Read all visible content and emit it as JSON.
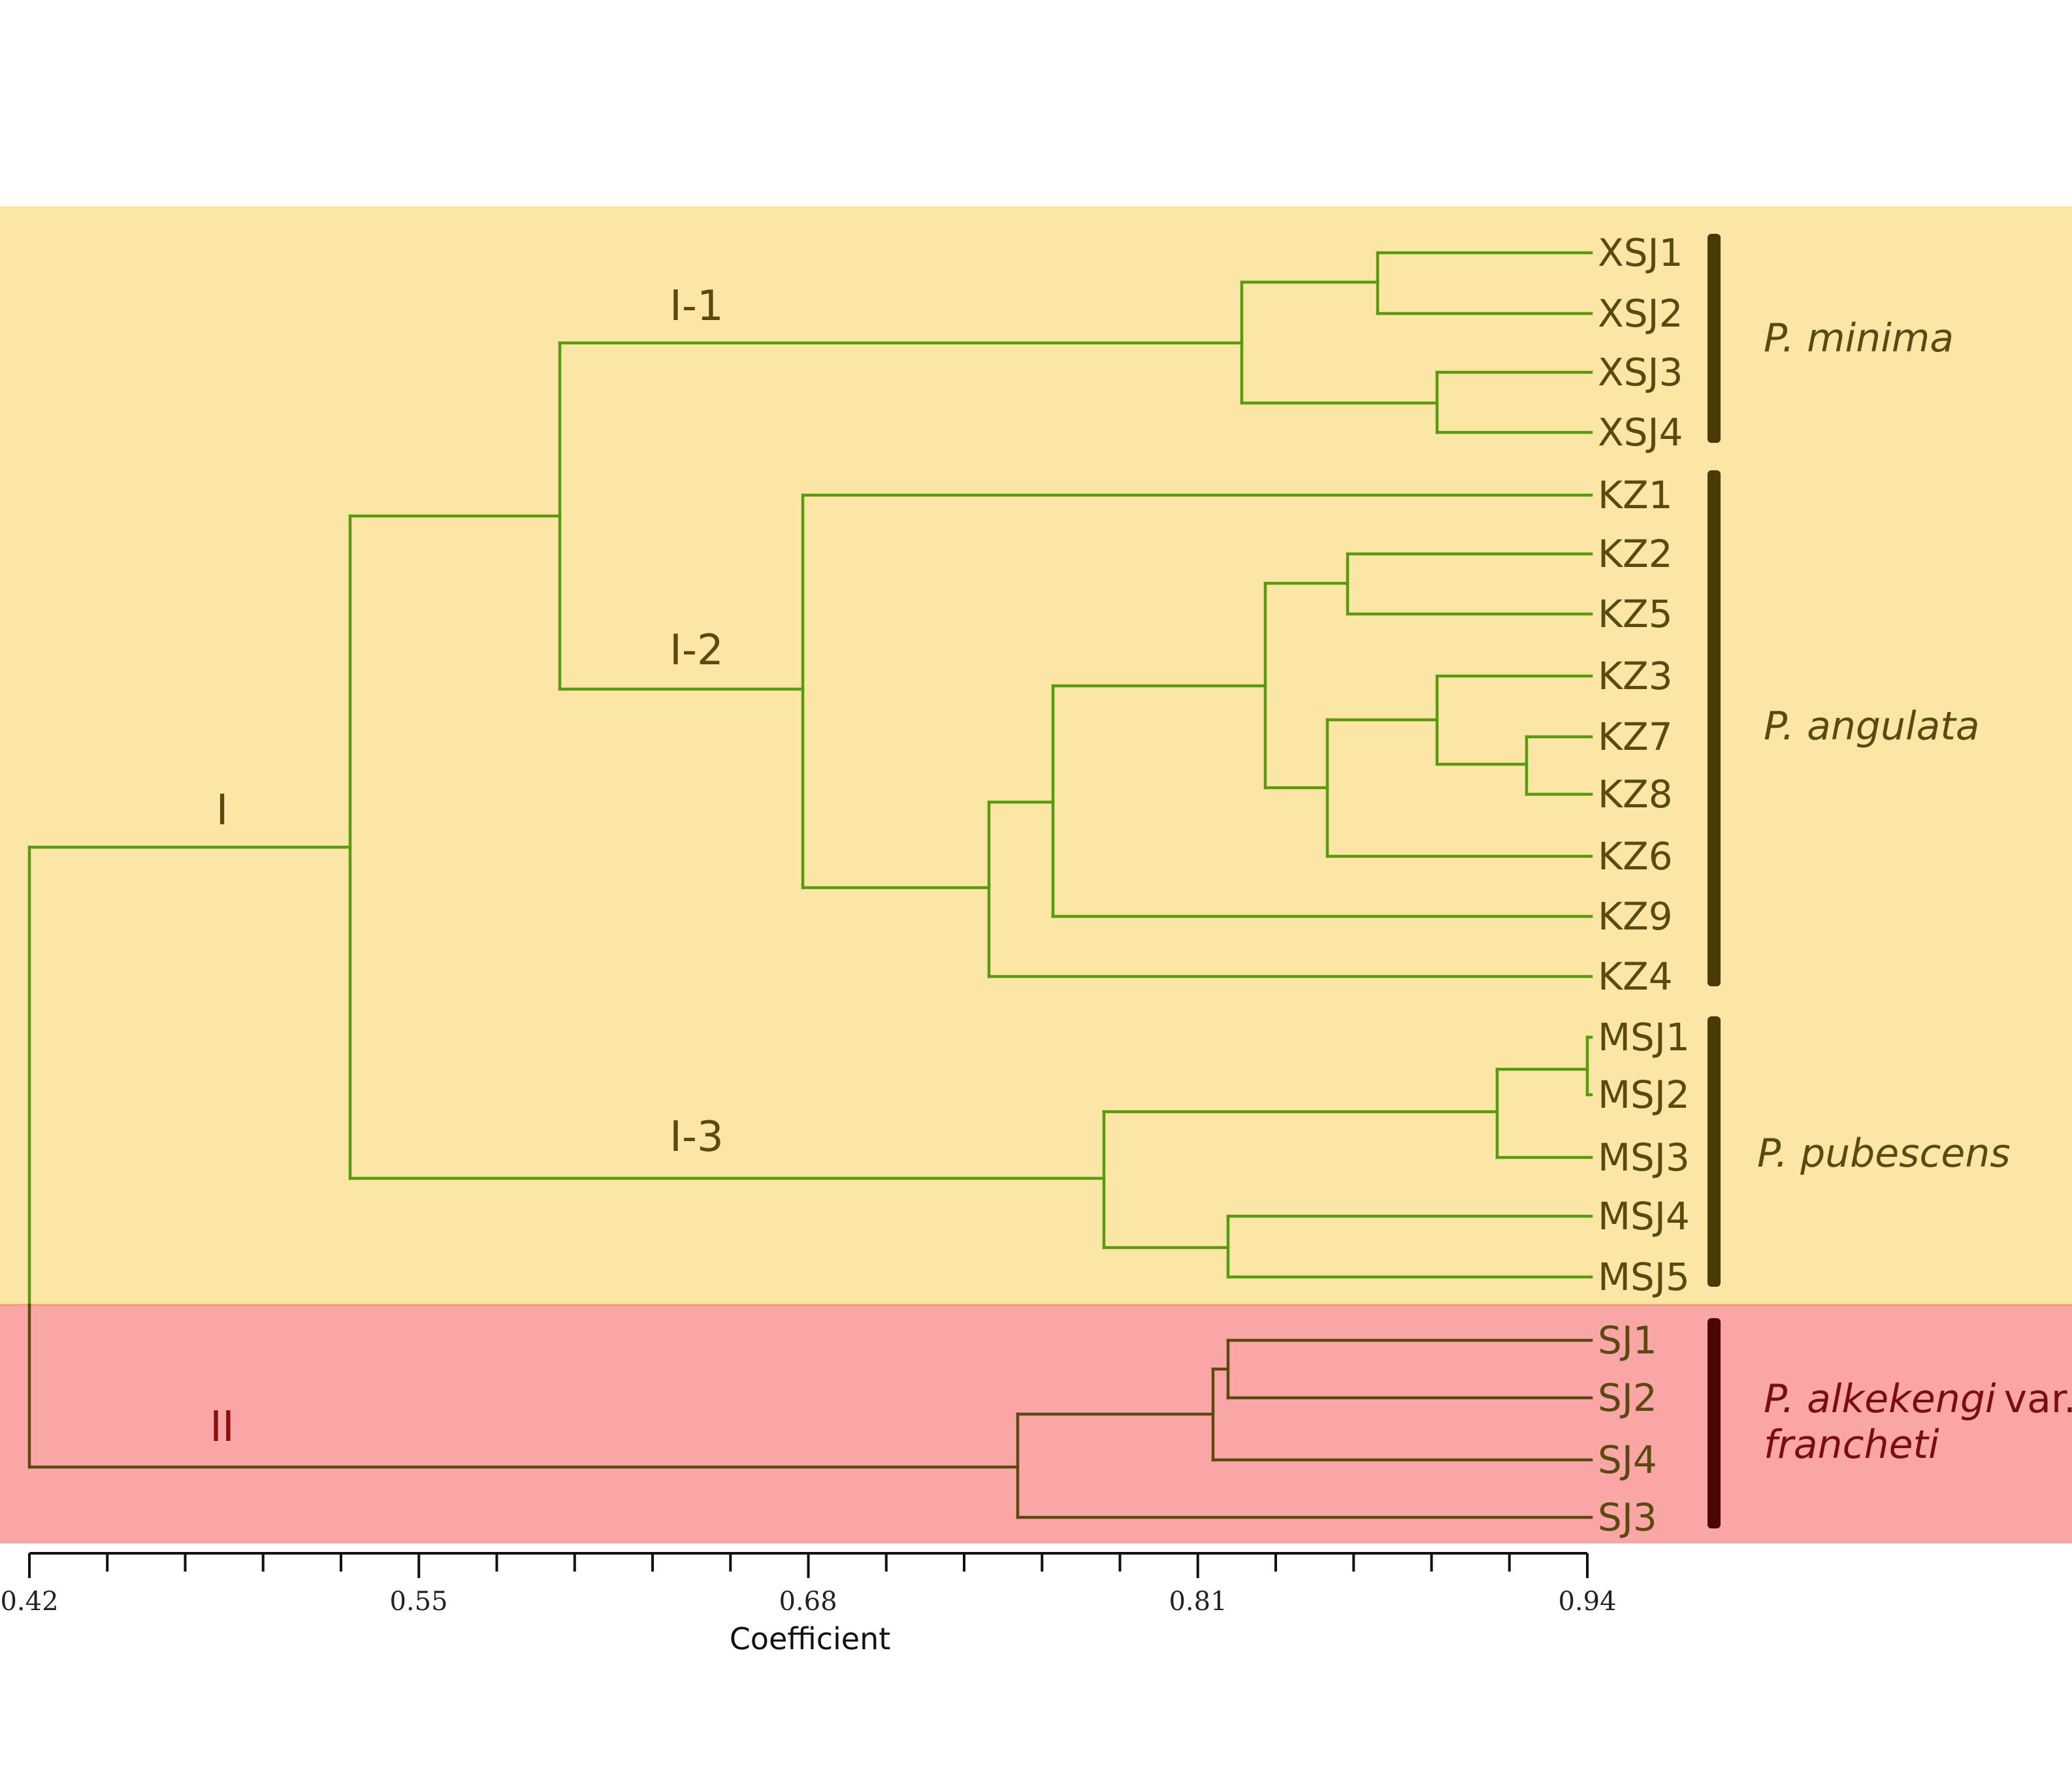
{
  "axis": {
    "title": "Coefficient",
    "ticks": [
      "0.42",
      "0.55",
      "0.68",
      "0.81",
      "0.94"
    ],
    "min": 0.42,
    "max": 0.94
  },
  "clusters": {
    "I": "I",
    "I_1": "I-1",
    "I_2": "I-2",
    "I_3": "I-3",
    "II": "II"
  },
  "leaves": [
    "XSJ1",
    "XSJ2",
    "XSJ3",
    "XSJ4",
    "KZ1",
    "KZ2",
    "KZ5",
    "KZ3",
    "KZ7",
    "KZ8",
    "KZ6",
    "KZ9",
    "KZ4",
    "MSJ1",
    "MSJ2",
    "MSJ3",
    "MSJ4",
    "MSJ5",
    "SJ1",
    "SJ2",
    "SJ4",
    "SJ3"
  ],
  "species": {
    "minima": "P. minima",
    "angulata": "P. angulata",
    "pubescens": "P. pubescens",
    "alkekengi": "P. alkekengi",
    "var": "var.",
    "francheti": "francheti"
  },
  "colors": {
    "group_I_band": "#fbe6a6",
    "group_II_band": "#fba6a6",
    "branch_I": "#5a9a10",
    "branch_II": "#5a4a10",
    "bar_I": "#4a3a06",
    "bar_II": "#4a0606"
  },
  "dendrogram": {
    "merges": [
      {
        "a": "XSJ1",
        "b": "XSJ2",
        "coefficient": 0.868
      },
      {
        "a": "XSJ3",
        "b": "XSJ4",
        "coefficient": 0.888
      },
      {
        "a": "XSJ1-2",
        "b": "XSJ3-4",
        "coefficient": 0.822
      },
      {
        "a": "KZ2",
        "b": "KZ5",
        "coefficient": 0.858
      },
      {
        "a": "KZ7",
        "b": "KZ8",
        "coefficient": 0.918
      },
      {
        "a": "KZ3",
        "b": "KZ7-8",
        "coefficient": 0.888
      },
      {
        "a": "KZ3-7-8",
        "b": "KZ6",
        "coefficient": 0.851
      },
      {
        "a": "KZ2-5",
        "b": "KZ3-7-8-6",
        "coefficient": 0.83
      },
      {
        "a": "KZ2-5-3-7-8-6",
        "b": "KZ9",
        "coefficient": 0.763
      },
      {
        "a": "KZ2-9",
        "b": "KZ4",
        "coefficient": 0.742
      },
      {
        "a": "KZ1",
        "b": "KZ2-4",
        "coefficient": 0.678
      },
      {
        "a": "MSJ1",
        "b": "MSJ2",
        "coefficient": 0.94
      },
      {
        "a": "MSJ1-2",
        "b": "MSJ3",
        "coefficient": 0.91
      },
      {
        "a": "MSJ4",
        "b": "MSJ5",
        "coefficient": 0.818
      },
      {
        "a": "MSJ1-3",
        "b": "MSJ4-5",
        "coefficient": 0.777
      },
      {
        "a": "SJ1",
        "b": "SJ2",
        "coefficient": 0.82
      },
      {
        "a": "SJ1-2",
        "b": "SJ4",
        "coefficient": 0.815
      },
      {
        "a": "SJ1-4",
        "b": "SJ3",
        "coefficient": 0.75
      },
      {
        "a": "I-1",
        "b": "I-2",
        "coefficient": 0.598
      },
      {
        "a": "I-1-2",
        "b": "I-3",
        "coefficient": 0.528
      },
      {
        "a": "I",
        "b": "II",
        "coefficient": 0.42
      }
    ]
  }
}
